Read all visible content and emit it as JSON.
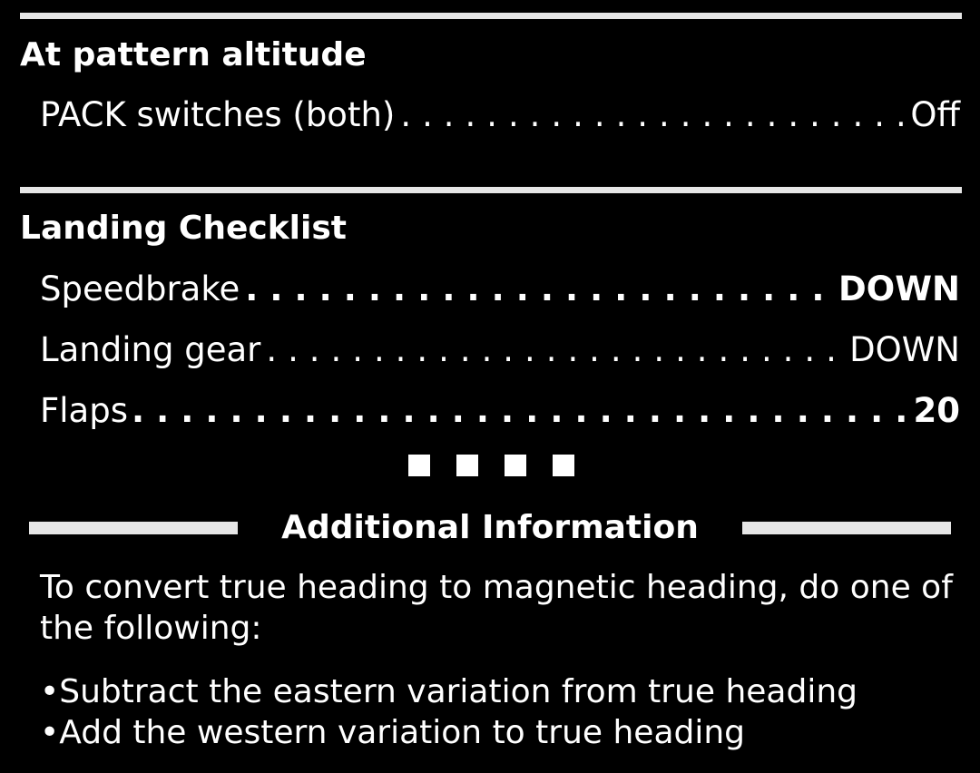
{
  "section1": {
    "title": "At pattern altitude",
    "items": [
      {
        "label": "PACK switches (both)",
        "value": "Off"
      }
    ]
  },
  "section2": {
    "title": "Landing Checklist",
    "items": [
      {
        "label": "Speedbrake",
        "value": "DOWN"
      },
      {
        "label": "Landing gear",
        "value": "DOWN"
      },
      {
        "label": "Flaps",
        "value": "20"
      }
    ]
  },
  "additional": {
    "title": "Additional Information",
    "paragraph": "To convert true heading to magnetic heading, do one of the following:",
    "bullets": [
      "•Subtract the eastern variation from true heading",
      "•Add the western variation to true heading"
    ]
  }
}
